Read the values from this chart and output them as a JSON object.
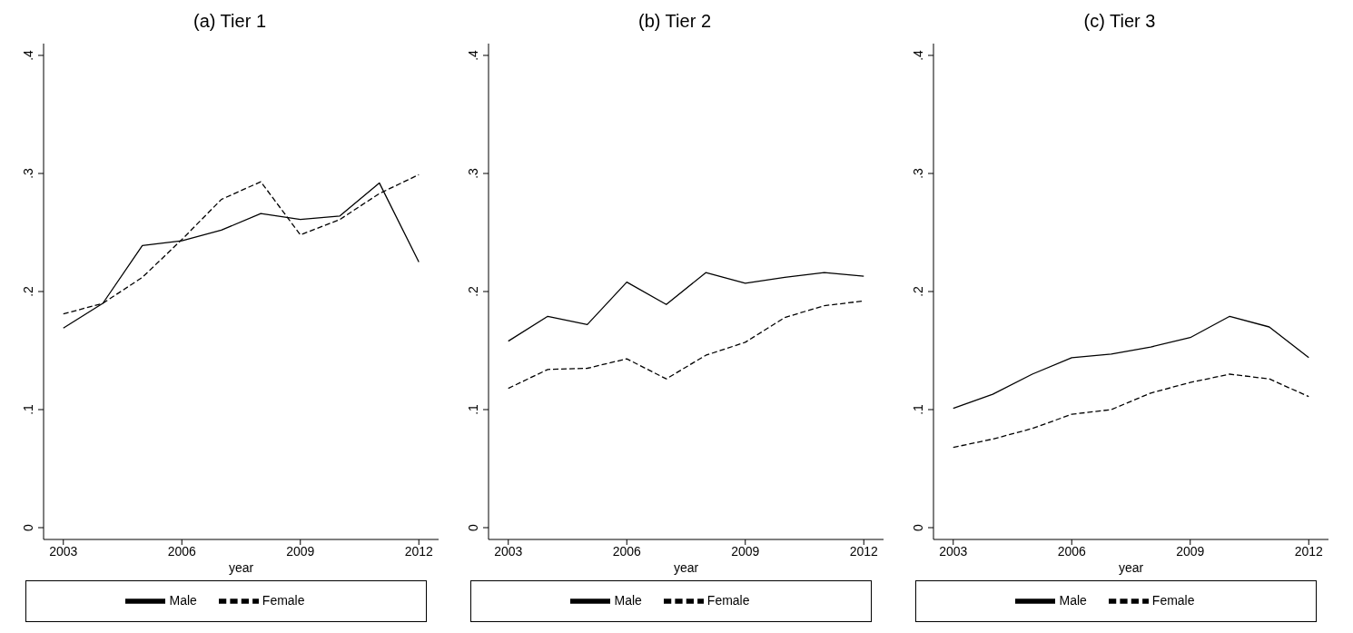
{
  "chart_data": [
    {
      "type": "line",
      "title": "(a) Tier 1",
      "xlabel": "year",
      "x": [
        2003,
        2004,
        2005,
        2006,
        2007,
        2008,
        2009,
        2010,
        2011,
        2012
      ],
      "xlim": [
        2002.5,
        2012.5
      ],
      "xticks": [
        2003,
        2006,
        2009,
        2012
      ],
      "ylim": [
        -0.01,
        0.41
      ],
      "yticks": [
        {
          "value": 0,
          "label": "0"
        },
        {
          "value": 0.1,
          "label": ".1"
        },
        {
          "value": 0.2,
          "label": ".2"
        },
        {
          "value": 0.3,
          "label": ".3"
        },
        {
          "value": 0.4,
          "label": ".4"
        }
      ],
      "legend": "bottom",
      "marker": "none",
      "series": [
        {
          "name": "Male",
          "color": "#000000",
          "line_style": "solid",
          "values": [
            0.169,
            0.19,
            0.239,
            0.243,
            0.252,
            0.266,
            0.261,
            0.264,
            0.292,
            0.225
          ]
        },
        {
          "name": "Female",
          "color": "#000000",
          "line_style": "dashed",
          "values": [
            0.181,
            0.19,
            0.212,
            0.244,
            0.278,
            0.293,
            0.248,
            0.261,
            0.283,
            0.299
          ]
        }
      ]
    },
    {
      "type": "line",
      "title": "(b) Tier 2",
      "xlabel": "year",
      "x": [
        2003,
        2004,
        2005,
        2006,
        2007,
        2008,
        2009,
        2010,
        2011,
        2012
      ],
      "xlim": [
        2002.5,
        2012.5
      ],
      "xticks": [
        2003,
        2006,
        2009,
        2012
      ],
      "ylim": [
        -0.01,
        0.41
      ],
      "yticks": [
        {
          "value": 0,
          "label": "0"
        },
        {
          "value": 0.1,
          "label": ".1"
        },
        {
          "value": 0.2,
          "label": ".2"
        },
        {
          "value": 0.3,
          "label": ".3"
        },
        {
          "value": 0.4,
          "label": ".4"
        }
      ],
      "legend": "bottom",
      "marker": "none",
      "series": [
        {
          "name": "Male",
          "color": "#000000",
          "line_style": "solid",
          "values": [
            0.158,
            0.179,
            0.172,
            0.208,
            0.189,
            0.216,
            0.207,
            0.212,
            0.216,
            0.213
          ]
        },
        {
          "name": "Female",
          "color": "#000000",
          "line_style": "dashed",
          "values": [
            0.118,
            0.134,
            0.135,
            0.143,
            0.126,
            0.146,
            0.157,
            0.178,
            0.188,
            0.192
          ]
        }
      ]
    },
    {
      "type": "line",
      "title": "(c) Tier 3",
      "xlabel": "year",
      "x": [
        2003,
        2004,
        2005,
        2006,
        2007,
        2008,
        2009,
        2010,
        2011,
        2012
      ],
      "xlim": [
        2002.5,
        2012.5
      ],
      "xticks": [
        2003,
        2006,
        2009,
        2012
      ],
      "ylim": [
        -0.01,
        0.41
      ],
      "yticks": [
        {
          "value": 0,
          "label": "0"
        },
        {
          "value": 0.1,
          "label": ".1"
        },
        {
          "value": 0.2,
          "label": ".2"
        },
        {
          "value": 0.3,
          "label": ".3"
        },
        {
          "value": 0.4,
          "label": ".4"
        }
      ],
      "legend": "bottom",
      "marker": "none",
      "series": [
        {
          "name": "Male",
          "color": "#000000",
          "line_style": "solid",
          "values": [
            0.101,
            0.113,
            0.13,
            0.144,
            0.147,
            0.153,
            0.161,
            0.179,
            0.17,
            0.144
          ]
        },
        {
          "name": "Female",
          "color": "#000000",
          "line_style": "dashed",
          "values": [
            0.068,
            0.075,
            0.084,
            0.096,
            0.1,
            0.114,
            0.123,
            0.13,
            0.126,
            0.111
          ]
        }
      ]
    }
  ]
}
